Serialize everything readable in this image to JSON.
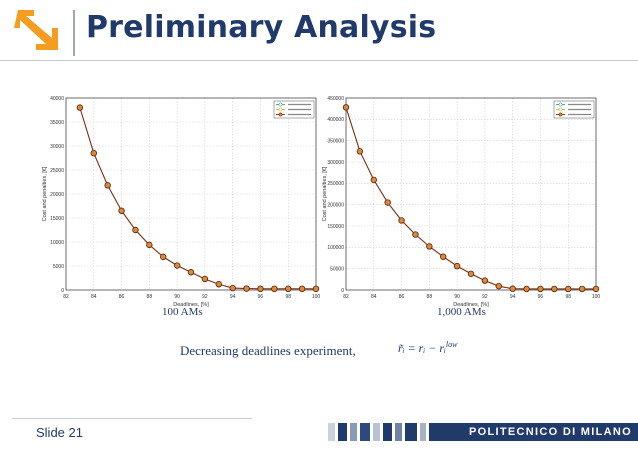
{
  "slide": {
    "title": "Preliminary Analysis",
    "caption_left": "100 AMs",
    "caption_right": "1,000 AMs",
    "experiment_text": "Decreasing deadlines experiment,",
    "formula_main": "r̃ᵢ = rᵢ − rᵢ",
    "formula_sup": "low",
    "slide_number": "Slide 21",
    "institution": "POLITECNICO DI MILANO"
  },
  "colors": {
    "title": "#1f3a6b",
    "line": "#7a2e0e",
    "marker_fill": "#d98a3a",
    "footer_band": "#1f3a6b"
  },
  "chart_data": [
    {
      "type": "line",
      "title": "",
      "xlabel": "Deadlines, [%]",
      "ylabel": "Cost and penalties, [€]",
      "xlim": [
        82,
        100
      ],
      "ylim": [
        0,
        40000
      ],
      "xticks": [
        82,
        84,
        86,
        88,
        90,
        92,
        94,
        96,
        98,
        100
      ],
      "yticks": [
        0,
        5000,
        10000,
        15000,
        20000,
        25000,
        30000,
        35000,
        40000
      ],
      "grid": true,
      "legend_position": "top-right",
      "legend": [
        "",
        "",
        ""
      ],
      "series": [
        {
          "name": "",
          "x": [
            83,
            84,
            85,
            86,
            87,
            88,
            89,
            90,
            91,
            92,
            93,
            94,
            95,
            96,
            97,
            98,
            99,
            100
          ],
          "y": [
            38000,
            28500,
            21800,
            16500,
            12500,
            9400,
            6900,
            5100,
            3700,
            2300,
            1200,
            400,
            300,
            250,
            250,
            250,
            250,
            250
          ]
        }
      ]
    },
    {
      "type": "line",
      "title": "",
      "xlabel": "Deadlines, [%]",
      "ylabel": "Cost and penalties, [€]",
      "xlim": [
        82,
        100
      ],
      "ylim": [
        0,
        450000
      ],
      "xticks": [
        82,
        84,
        86,
        88,
        90,
        92,
        94,
        96,
        98,
        100
      ],
      "yticks": [
        0,
        50000,
        100000,
        150000,
        200000,
        250000,
        300000,
        350000,
        400000,
        450000
      ],
      "grid": true,
      "legend_position": "top-right",
      "legend": [
        "",
        "",
        ""
      ],
      "series": [
        {
          "name": "",
          "x": [
            82,
            83,
            84,
            85,
            86,
            87,
            88,
            89,
            90,
            91,
            92,
            93,
            94,
            95,
            96,
            97,
            98,
            99,
            100
          ],
          "y": [
            428000,
            325000,
            258000,
            205000,
            163000,
            130000,
            102000,
            78000,
            56000,
            38000,
            22000,
            9000,
            3000,
            2500,
            2500,
            2500,
            2500,
            2500,
            2500
          ]
        }
      ]
    }
  ]
}
